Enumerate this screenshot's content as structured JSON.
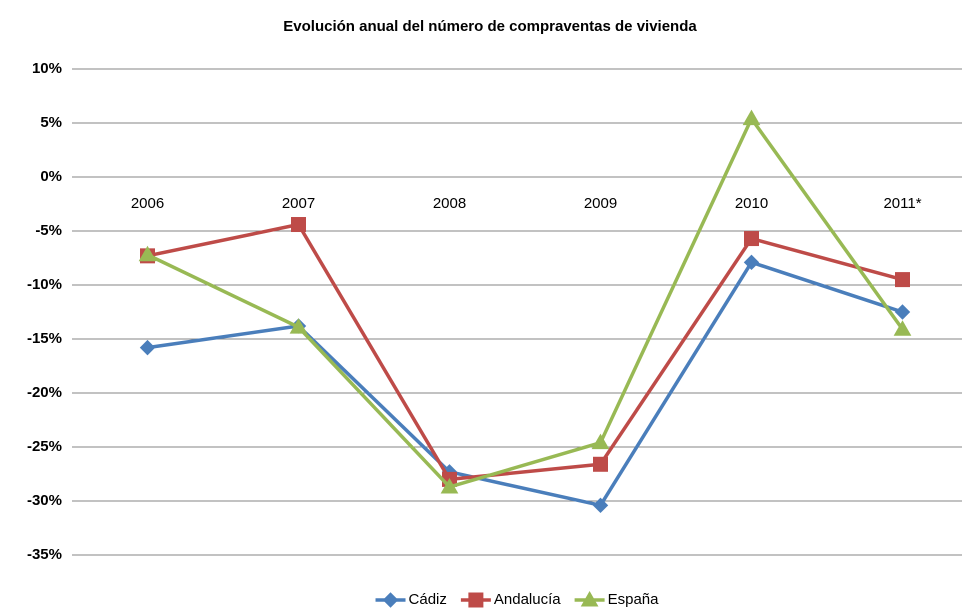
{
  "chart_data": {
    "type": "line",
    "title": "Evolución anual del número de compraventas de vivienda",
    "categories": [
      "2006",
      "2007",
      "2008",
      "2009",
      "2010",
      "2011*"
    ],
    "series": [
      {
        "name": "Cádiz",
        "color": "#4a7ebb",
        "marker": "diamond",
        "values": [
          -15.8,
          -13.8,
          -27.3,
          -30.4,
          -7.9,
          -12.5
        ]
      },
      {
        "name": "Andalucía",
        "color": "#be4b48",
        "marker": "square",
        "values": [
          -7.3,
          -4.4,
          -28.0,
          -26.6,
          -5.7,
          -9.5
        ]
      },
      {
        "name": "España",
        "color": "#98b954",
        "marker": "triangle",
        "values": [
          -7.2,
          -13.9,
          -28.7,
          -24.6,
          5.4,
          -14.1
        ]
      }
    ],
    "ylim": [
      -35,
      10
    ],
    "yticks": [
      {
        "value": -35,
        "label": "-35%"
      },
      {
        "value": -30,
        "label": "-30%"
      },
      {
        "value": -25,
        "label": "-25%"
      },
      {
        "value": -20,
        "label": "-20%"
      },
      {
        "value": -15,
        "label": "-15%"
      },
      {
        "value": -10,
        "label": "-10%"
      },
      {
        "value": -5,
        "label": "-5%"
      },
      {
        "value": 0,
        "label": "0%"
      },
      {
        "value": 5,
        "label": "5%"
      },
      {
        "value": 10,
        "label": "10%"
      }
    ],
    "grid": true,
    "legend": "bottom"
  }
}
